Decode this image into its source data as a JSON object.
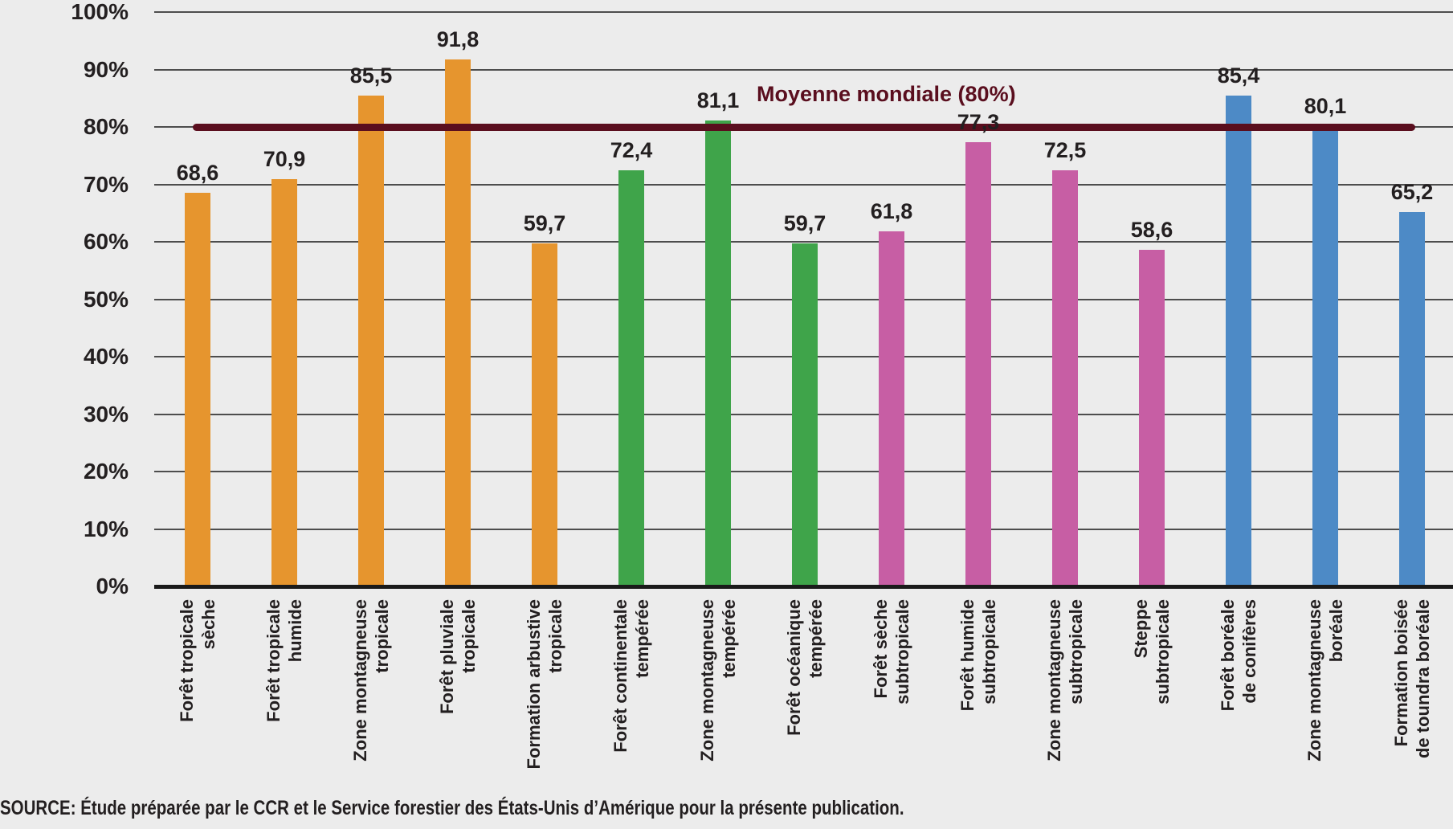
{
  "colors": {
    "background": "#ECECEC",
    "text": "#231F20",
    "gridline": "#4D4D4D",
    "axis": "#1A1A1A"
  },
  "chart_data": {
    "type": "bar",
    "title": "",
    "xlabel": "",
    "ylabel": "",
    "ylim": [
      0,
      100
    ],
    "grid": true,
    "legend": null,
    "y_tick_labels": [
      "0%",
      "10%",
      "20%",
      "30%",
      "40%",
      "50%",
      "60%",
      "70%",
      "80%",
      "90%",
      "100%"
    ],
    "categories": [
      "Forêt tropicale sèche",
      "Forêt tropicale humide",
      "Zone montagneuse tropicale",
      "Forêt pluviale tropicale",
      "Formation arbustive tropicale",
      "Forêt continentale tempérée",
      "Zone montagneuse tempérée",
      "Forêt océanique tempérée",
      "Forêt sèche subtropicale",
      "Forêt humide subtropicale",
      "Zone montagneuse subtropicale",
      "Steppe subtropicale",
      "Forêt boréale de conifères",
      "Zone montagneuse boréale",
      "Formation boisée de toundra boréale"
    ],
    "category_label_lines": [
      [
        "Forêt tropicale",
        "sèche"
      ],
      [
        "Forêt tropicale",
        "humide"
      ],
      [
        "Zone montagneuse",
        "tropicale"
      ],
      [
        "Forêt pluviale",
        "tropicale"
      ],
      [
        "Formation arbustive",
        "tropicale"
      ],
      [
        "Forêt continentale",
        "tempérée"
      ],
      [
        "Zone montagneuse",
        "tempérée"
      ],
      [
        "Forêt océanique",
        "tempérée"
      ],
      [
        "Forêt sèche",
        "subtropicale"
      ],
      [
        "Forêt humide",
        "subtropicale"
      ],
      [
        "Zone montagneuse",
        "subtropicale"
      ],
      [
        "Steppe",
        "subtropicale"
      ],
      [
        "Forêt boréale",
        "de conifères"
      ],
      [
        "Zone montagneuse",
        "boréale"
      ],
      [
        "Formation boisée",
        "de toundra boréale"
      ]
    ],
    "values": [
      68.6,
      70.9,
      85.5,
      91.8,
      59.7,
      72.4,
      81.1,
      59.7,
      61.8,
      77.3,
      72.5,
      58.6,
      85.4,
      80.1,
      65.2
    ],
    "value_labels": [
      "68,6",
      "70,9",
      "85,5",
      "91,8",
      "59,7",
      "72,4",
      "81,1",
      "59,7",
      "61,8",
      "77,3",
      "72,5",
      "58,6",
      "85,4",
      "80,1",
      "65,2"
    ],
    "bar_groups": [
      "tropical",
      "tropical",
      "tropical",
      "tropical",
      "tropical",
      "temperate",
      "temperate",
      "temperate",
      "subtropical",
      "subtropical",
      "subtropical",
      "subtropical",
      "boreal",
      "boreal",
      "boreal"
    ],
    "group_colors": {
      "tropical": "#E6952E",
      "temperate": "#3FA44A",
      "subtropical": "#C75EA4",
      "boreal": "#4D8AC6"
    },
    "reference_line": {
      "value": 80,
      "label": "Moyenne mondiale (80%)",
      "color": "#5A0E1E"
    }
  },
  "source_note": "SOURCE: Étude préparée par le CCR et le Service forestier des États-Unis d’Amérique pour la présente publication."
}
